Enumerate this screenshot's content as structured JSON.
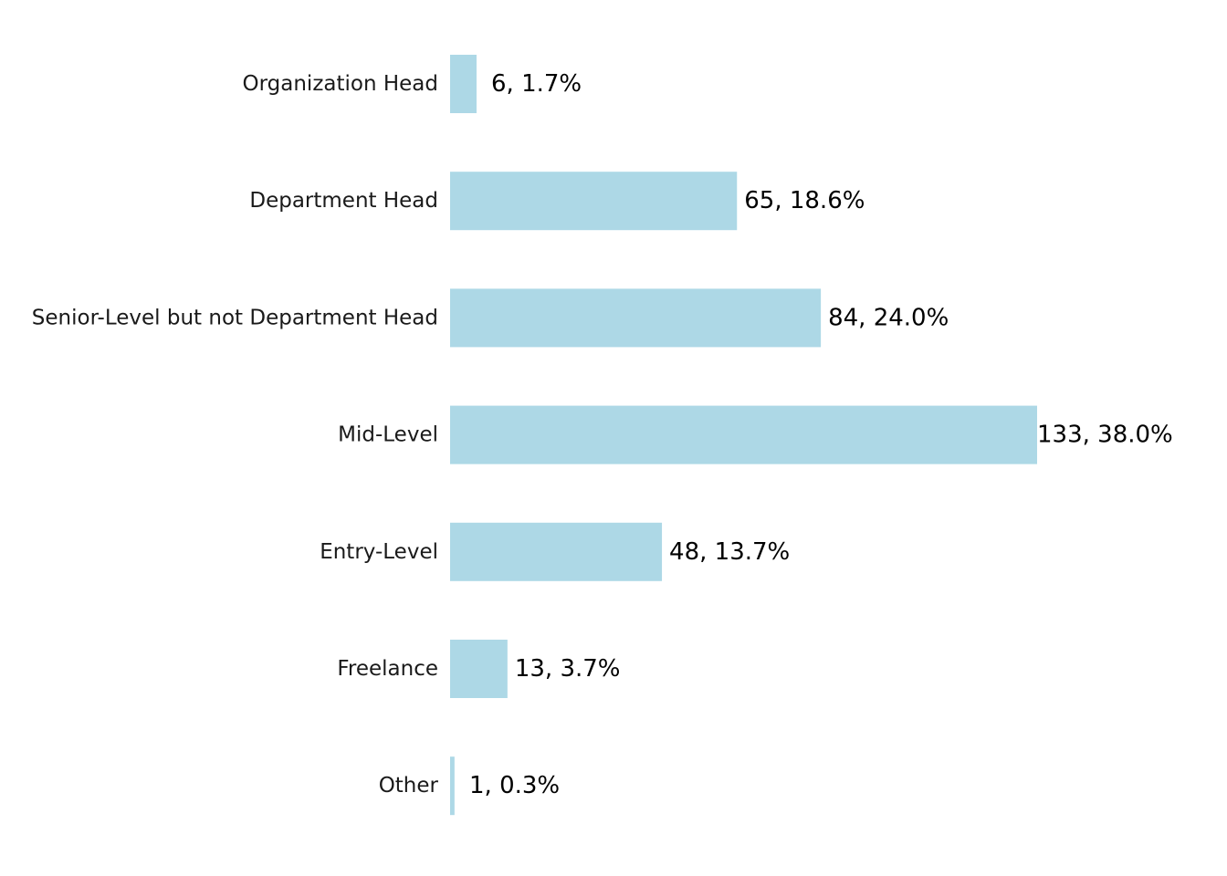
{
  "chart_data": {
    "type": "bar",
    "orientation": "horizontal",
    "categories": [
      "Organization Head",
      "Department Head",
      "Senior-Level but not Department Head",
      "Mid-Level",
      "Entry-Level",
      "Freelance",
      "Other"
    ],
    "values": [
      6,
      65,
      84,
      133,
      48,
      13,
      1
    ],
    "data_labels": [
      "6, 1.7%",
      "65, 18.6%",
      "84, 24.0%",
      "133, 38.0%",
      "48, 13.7%",
      "13, 3.7%",
      "1, 0.3%"
    ],
    "bar_color": "#add8e6",
    "xlim": [
      0,
      133
    ],
    "grid": false,
    "legend": "none"
  }
}
